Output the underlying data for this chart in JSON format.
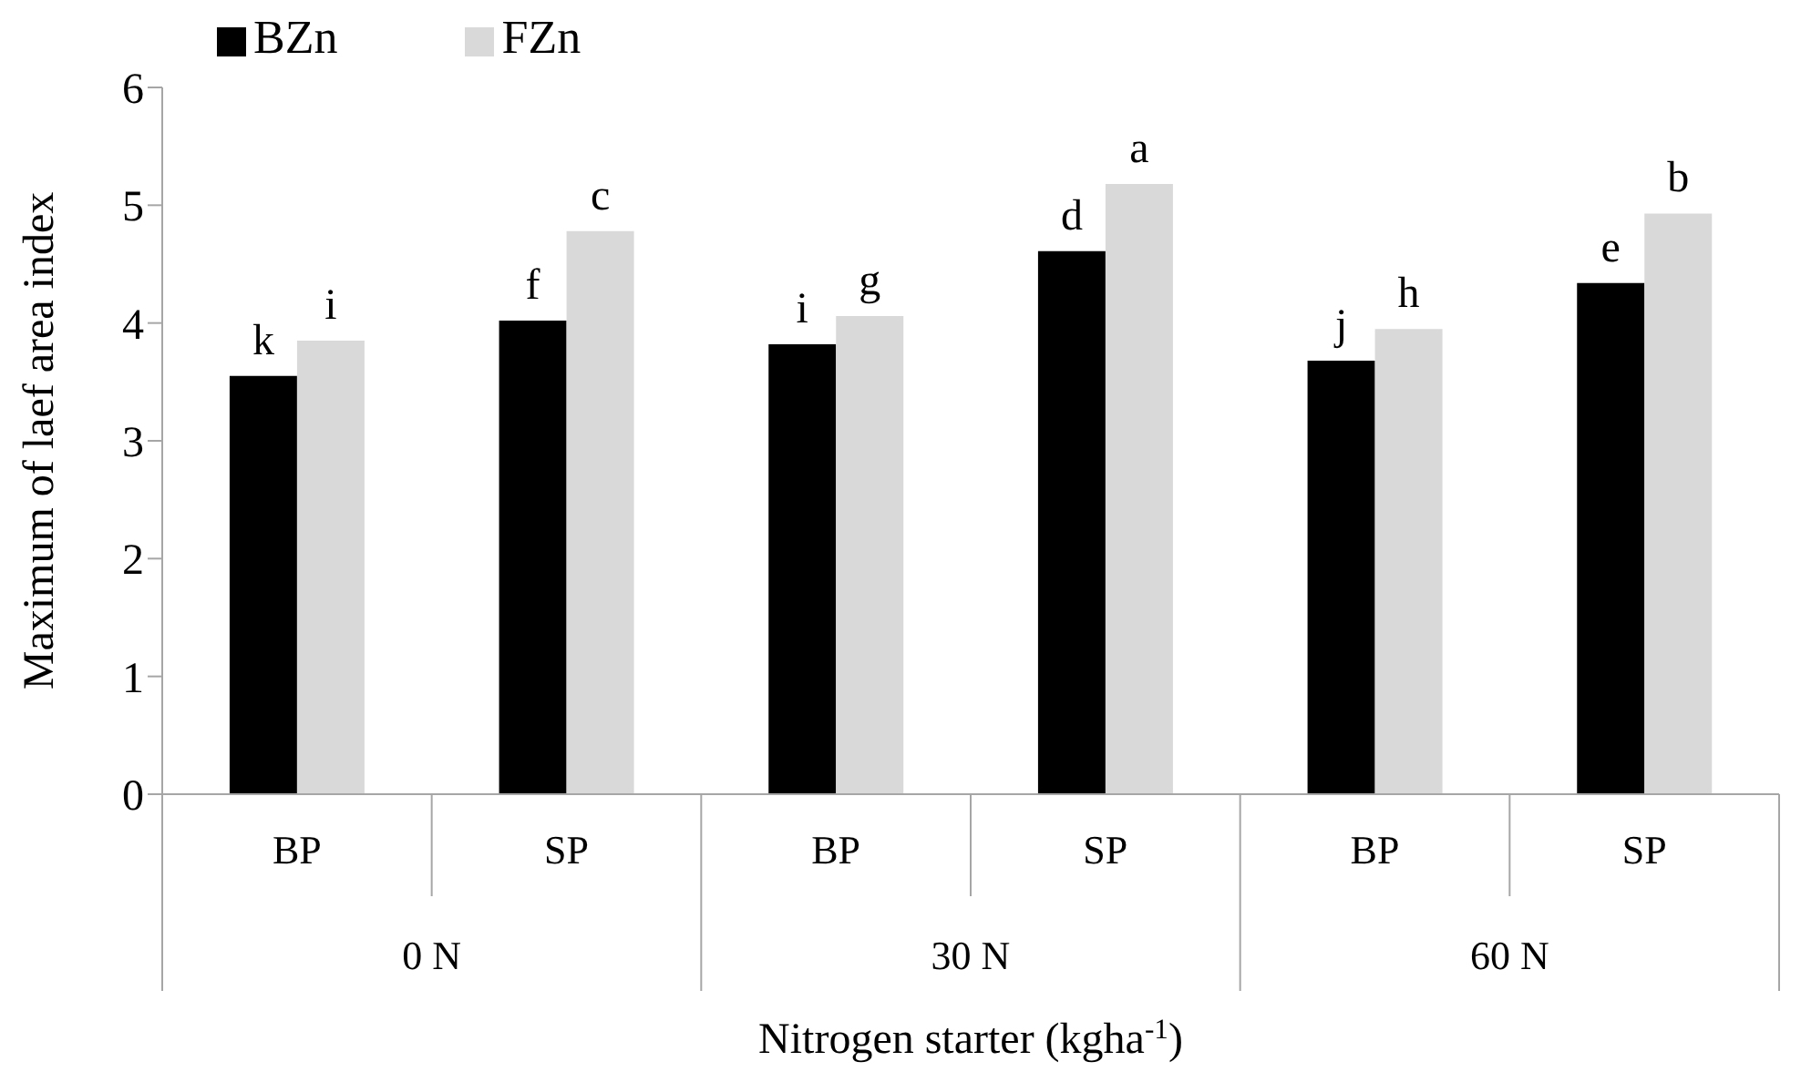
{
  "chart_data": {
    "type": "bar",
    "xlabel": "Nitrogen starter (kgha$^{-1}$)",
    "ylabel": "Maximum of laef area index",
    "categories": [
      "BP",
      "SP",
      "BP",
      "SP",
      "BP",
      "SP"
    ],
    "series": [
      {
        "name": "BZn",
        "color": "#000000",
        "values": [
          3.55,
          4.02,
          3.82,
          4.61,
          3.68,
          4.34
        ],
        "value_labels": [
          "k",
          "f",
          "i",
          "d",
          "j",
          "e"
        ]
      },
      {
        "name": "FZn",
        "color": "#d9d9d9",
        "values": [
          3.85,
          4.78,
          4.06,
          5.18,
          3.95,
          4.93
        ],
        "value_labels": [
          "i",
          "c",
          "g",
          "a",
          "h",
          "b"
        ]
      }
    ],
    "annotations": [
      "0 N",
      "30 N",
      "60 N"
    ],
    "ylim": [
      0,
      6
    ],
    "yticks": [
      0,
      1,
      2,
      3,
      4,
      5,
      6
    ],
    "grid": false,
    "legend": "top left"
  }
}
